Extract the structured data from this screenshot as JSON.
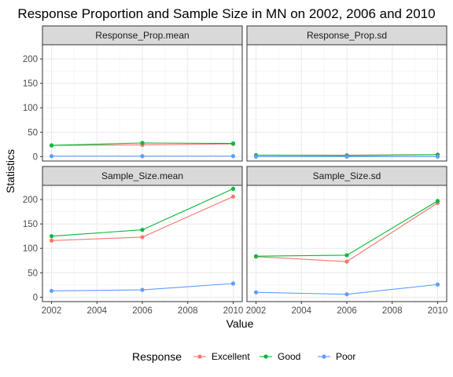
{
  "chart_data": {
    "type": "line",
    "title": "Response Proportion and Sample Size in MN on 2002, 2006 and 2010",
    "xlabel": "Value",
    "ylabel": "Statistics",
    "x": [
      2002,
      2006,
      2010
    ],
    "xticks": [
      2002,
      2004,
      2006,
      2008,
      2010
    ],
    "yticks": [
      0,
      50,
      100,
      150,
      200
    ],
    "xlim": [
      2001.6,
      2010.4
    ],
    "ylim": [
      -9,
      229
    ],
    "grid": true,
    "legend": {
      "title": "Response",
      "position": "bottom",
      "entries": [
        {
          "name": "Excellent",
          "color": "#F8766D"
        },
        {
          "name": "Good",
          "color": "#00BA38"
        },
        {
          "name": "Poor",
          "color": "#619CFF"
        }
      ]
    },
    "panels": [
      {
        "label": "Response_Prop.mean",
        "series": [
          {
            "name": "Excellent",
            "values": [
              23,
              24,
              26
            ]
          },
          {
            "name": "Good",
            "values": [
              23,
              28,
              27
            ]
          },
          {
            "name": "Poor",
            "values": [
              1,
              1,
              1
            ]
          }
        ]
      },
      {
        "label": "Response_Prop.sd",
        "series": [
          {
            "name": "Excellent",
            "values": [
              3,
              3,
              4
            ]
          },
          {
            "name": "Good",
            "values": [
              3,
              2,
              4
            ]
          },
          {
            "name": "Poor",
            "values": [
              0,
              0,
              0
            ]
          }
        ]
      },
      {
        "label": "Sample_Size.mean",
        "series": [
          {
            "name": "Excellent",
            "values": [
              116,
              123,
              206
            ]
          },
          {
            "name": "Good",
            "values": [
              125,
              138,
              222
            ]
          },
          {
            "name": "Poor",
            "values": [
              13,
              15,
              28
            ]
          }
        ]
      },
      {
        "label": "Sample_Size.sd",
        "series": [
          {
            "name": "Excellent",
            "values": [
              83,
              73,
              193
            ]
          },
          {
            "name": "Good",
            "values": [
              84,
              86,
              197
            ]
          },
          {
            "name": "Poor",
            "values": [
              10,
              6,
              26
            ]
          }
        ]
      }
    ]
  }
}
